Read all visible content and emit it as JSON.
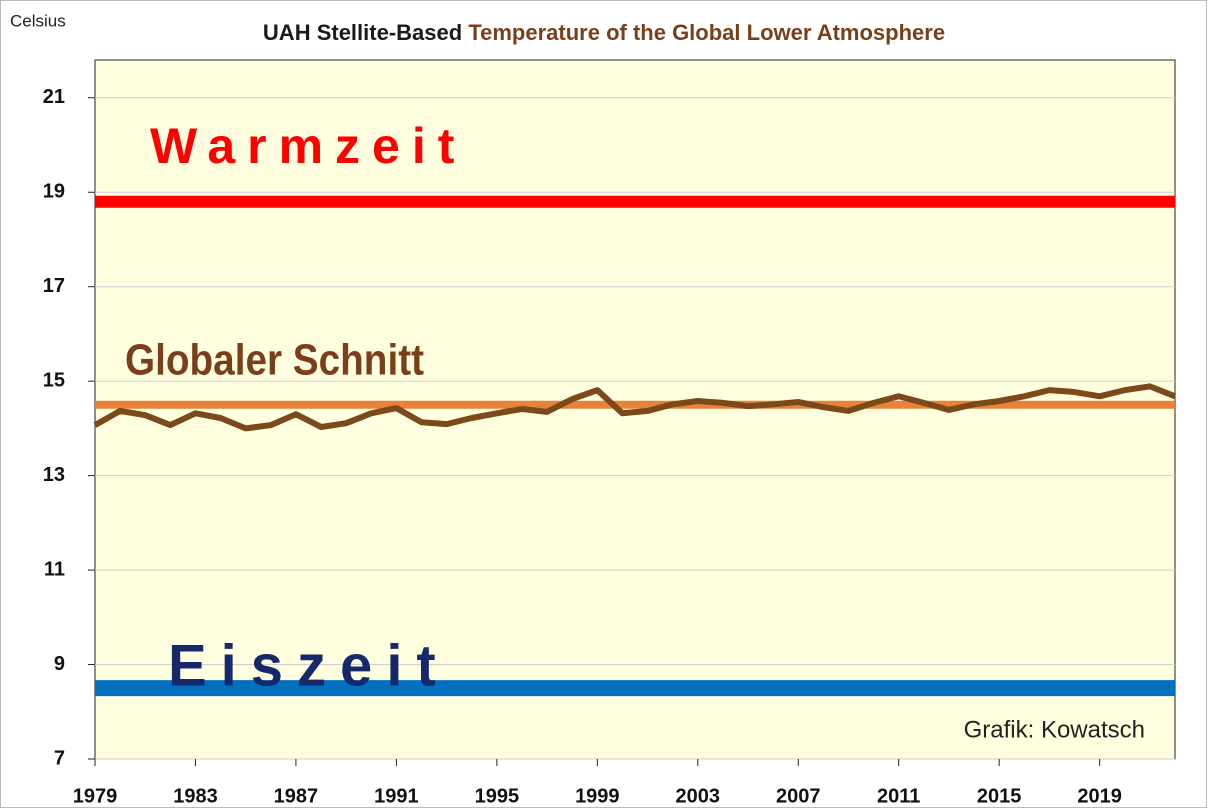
{
  "chart_data": {
    "type": "line",
    "title": [
      "UAH Stellite-Based",
      "Temperature of the Global Lower Atmosphere"
    ],
    "title_colors": [
      "#1a1a1a",
      "#7a3f1a"
    ],
    "y_label": "Celsius",
    "annotation": "Grafik: Kowatsch",
    "x": [
      1979,
      1980,
      1981,
      1982,
      1983,
      1984,
      1985,
      1986,
      1987,
      1988,
      1989,
      1990,
      1991,
      1992,
      1993,
      1994,
      1995,
      1996,
      1997,
      1998,
      1999,
      2000,
      2001,
      2002,
      2003,
      2004,
      2005,
      2006,
      2007,
      2008,
      2009,
      2010,
      2011,
      2012,
      2013,
      2014,
      2015,
      2016,
      2017,
      2018,
      2019,
      2020,
      2021,
      2022
    ],
    "series": [
      {
        "color": "#7a4a1a",
        "values": [
          14.07,
          14.37,
          14.28,
          14.07,
          14.32,
          14.22,
          14.0,
          14.07,
          14.3,
          14.03,
          14.11,
          14.32,
          14.43,
          14.13,
          14.09,
          14.22,
          14.32,
          14.41,
          14.35,
          14.62,
          14.81,
          14.32,
          14.37,
          14.51,
          14.58,
          14.54,
          14.47,
          14.51,
          14.56,
          14.45,
          14.37,
          14.54,
          14.68,
          14.54,
          14.39,
          14.51,
          14.58,
          14.68,
          14.81,
          14.77,
          14.68,
          14.81,
          14.89,
          14.68
        ]
      }
    ],
    "reference_lines": [
      {
        "label": "Warmzeit",
        "value": 18.8,
        "color": "#ff0000",
        "label_color": "#ff0000"
      },
      {
        "label": "Globaler Schnitt",
        "value": 14.5,
        "color": "#e8823a",
        "label_color": "#7a3f1a"
      },
      {
        "label": "Eiszeit",
        "value": 8.5,
        "color": "#0070c0",
        "label_color": "#14286b"
      }
    ],
    "xlim": [
      1979,
      2022
    ],
    "xticks": [
      1979,
      1983,
      1987,
      1991,
      1995,
      1999,
      2003,
      2007,
      2011,
      2015,
      2019
    ],
    "ylim": [
      7,
      21.8
    ],
    "yticks": [
      7,
      9,
      11,
      13,
      15,
      17,
      19,
      21
    ],
    "grid": true
  }
}
